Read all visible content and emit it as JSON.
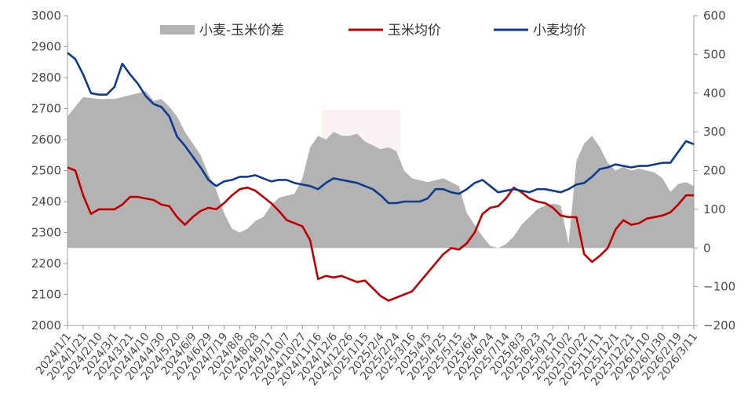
{
  "chart_data": {
    "type": "line",
    "legend_position": "top",
    "grid": false,
    "y_left": {
      "min": 2000,
      "max": 3000,
      "ticks": [
        2000,
        2100,
        2200,
        2300,
        2400,
        2500,
        2600,
        2700,
        2800,
        2900,
        3000
      ]
    },
    "y_right": {
      "min": -200,
      "max": 600,
      "ticks": [
        -200,
        -100,
        0,
        100,
        200,
        300,
        400,
        500,
        600
      ]
    },
    "x_tick_labels": [
      "2024/1/1",
      "2024/1/21",
      "2024/2/10",
      "2024/3/1",
      "2024/3/21",
      "2024/4/10",
      "2024/4/30",
      "2024/5/20",
      "2024/6/9",
      "2024/6/29",
      "2024/7/19",
      "2024/8/8",
      "2024/8/28",
      "2024/9/17",
      "2024/10/7",
      "2024/10/27",
      "2024/11/16",
      "2024/12/6",
      "2024/12/26",
      "2025/1/15",
      "2025/2/4",
      "2025/2/24",
      "2025/3/16",
      "2025/4/5",
      "2025/4/25",
      "2025/5/15",
      "2025/6/4",
      "2025/6/24",
      "2025/7/14",
      "2025/8/3",
      "2025/8/23",
      "2025/9/12",
      "2025/10/2",
      "2025/10/22",
      "2025/11/11",
      "2025/12/1",
      "2025/12/21",
      "2026/1/10",
      "2026/1/30",
      "2026/2/19",
      "2026/3/11"
    ],
    "series": [
      {
        "name": "小麦-玉米价差",
        "type": "area",
        "axis": "right",
        "color": "#b3b3b3",
        "points": [
          [
            0,
            340
          ],
          [
            2,
            390
          ],
          [
            4,
            385
          ],
          [
            6,
            385
          ],
          [
            8,
            395
          ],
          [
            10,
            405
          ],
          [
            11,
            380
          ],
          [
            12,
            385
          ],
          [
            13,
            365
          ],
          [
            14,
            340
          ],
          [
            15,
            300
          ],
          [
            16,
            270
          ],
          [
            17,
            240
          ],
          [
            18,
            190
          ],
          [
            19,
            150
          ],
          [
            20,
            90
          ],
          [
            21,
            50
          ],
          [
            22,
            40
          ],
          [
            23,
            50
          ],
          [
            24,
            70
          ],
          [
            25,
            80
          ],
          [
            26,
            110
          ],
          [
            27,
            130
          ],
          [
            28,
            135
          ],
          [
            29,
            140
          ],
          [
            30,
            180
          ],
          [
            31,
            260
          ],
          [
            32,
            290
          ],
          [
            33,
            280
          ],
          [
            34,
            300
          ],
          [
            35,
            290
          ],
          [
            36,
            290
          ],
          [
            37,
            295
          ],
          [
            38,
            275
          ],
          [
            39,
            265
          ],
          [
            40,
            255
          ],
          [
            41,
            260
          ],
          [
            42,
            250
          ],
          [
            43,
            200
          ],
          [
            44,
            180
          ],
          [
            45,
            175
          ],
          [
            46,
            170
          ],
          [
            47,
            175
          ],
          [
            48,
            180
          ],
          [
            49,
            170
          ],
          [
            50,
            160
          ],
          [
            51,
            90
          ],
          [
            52,
            60
          ],
          [
            53,
            30
          ],
          [
            54,
            5
          ],
          [
            55,
            0
          ],
          [
            56,
            10
          ],
          [
            57,
            30
          ],
          [
            58,
            60
          ],
          [
            59,
            80
          ],
          [
            60,
            100
          ],
          [
            61,
            110
          ],
          [
            62,
            115
          ],
          [
            63,
            110
          ],
          [
            64,
            10
          ],
          [
            65,
            225
          ],
          [
            66,
            270
          ],
          [
            67,
            290
          ],
          [
            68,
            260
          ],
          [
            69,
            220
          ],
          [
            70,
            200
          ],
          [
            71,
            210
          ],
          [
            72,
            200
          ],
          [
            73,
            205
          ],
          [
            74,
            200
          ],
          [
            75,
            195
          ],
          [
            76,
            180
          ],
          [
            77,
            145
          ],
          [
            78,
            165
          ],
          [
            79,
            170
          ],
          [
            80,
            160
          ]
        ]
      },
      {
        "name": "玉米均价",
        "type": "line",
        "axis": "left",
        "color": "#c00000",
        "points": [
          [
            0,
            2510
          ],
          [
            1,
            2500
          ],
          [
            2,
            2420
          ],
          [
            3,
            2360
          ],
          [
            4,
            2375
          ],
          [
            5,
            2375
          ],
          [
            6,
            2375
          ],
          [
            7,
            2390
          ],
          [
            8,
            2415
          ],
          [
            9,
            2415
          ],
          [
            10,
            2410
          ],
          [
            11,
            2405
          ],
          [
            12,
            2390
          ],
          [
            13,
            2385
          ],
          [
            14,
            2350
          ],
          [
            15,
            2325
          ],
          [
            16,
            2350
          ],
          [
            17,
            2370
          ],
          [
            18,
            2380
          ],
          [
            19,
            2375
          ],
          [
            20,
            2395
          ],
          [
            21,
            2420
          ],
          [
            22,
            2440
          ],
          [
            23,
            2445
          ],
          [
            24,
            2435
          ],
          [
            25,
            2415
          ],
          [
            26,
            2395
          ],
          [
            27,
            2370
          ],
          [
            28,
            2340
          ],
          [
            29,
            2330
          ],
          [
            30,
            2320
          ],
          [
            31,
            2275
          ],
          [
            32,
            2150
          ],
          [
            33,
            2160
          ],
          [
            34,
            2155
          ],
          [
            35,
            2160
          ],
          [
            36,
            2150
          ],
          [
            37,
            2140
          ],
          [
            38,
            2145
          ],
          [
            39,
            2120
          ],
          [
            40,
            2095
          ],
          [
            41,
            2080
          ],
          [
            42,
            2090
          ],
          [
            43,
            2100
          ],
          [
            44,
            2110
          ],
          [
            45,
            2140
          ],
          [
            46,
            2170
          ],
          [
            47,
            2200
          ],
          [
            48,
            2230
          ],
          [
            49,
            2250
          ],
          [
            50,
            2245
          ],
          [
            51,
            2265
          ],
          [
            52,
            2300
          ],
          [
            53,
            2360
          ],
          [
            54,
            2380
          ],
          [
            55,
            2385
          ],
          [
            56,
            2410
          ],
          [
            57,
            2445
          ],
          [
            58,
            2430
          ],
          [
            59,
            2410
          ],
          [
            60,
            2400
          ],
          [
            61,
            2395
          ],
          [
            62,
            2380
          ],
          [
            63,
            2355
          ],
          [
            64,
            2350
          ],
          [
            65,
            2350
          ],
          [
            66,
            2230
          ],
          [
            67,
            2205
          ],
          [
            68,
            2225
          ],
          [
            69,
            2250
          ],
          [
            70,
            2310
          ],
          [
            71,
            2340
          ],
          [
            72,
            2325
          ],
          [
            73,
            2330
          ],
          [
            74,
            2345
          ],
          [
            75,
            2350
          ],
          [
            76,
            2355
          ],
          [
            77,
            2365
          ],
          [
            78,
            2390
          ],
          [
            79,
            2420
          ],
          [
            80,
            2420
          ]
        ]
      },
      {
        "name": "小麦均价",
        "type": "line",
        "axis": "left",
        "color": "#0d3b8e",
        "points": [
          [
            0,
            2880
          ],
          [
            1,
            2860
          ],
          [
            2,
            2810
          ],
          [
            3,
            2750
          ],
          [
            4,
            2745
          ],
          [
            5,
            2745
          ],
          [
            6,
            2770
          ],
          [
            7,
            2845
          ],
          [
            8,
            2810
          ],
          [
            9,
            2780
          ],
          [
            10,
            2740
          ],
          [
            11,
            2715
          ],
          [
            12,
            2705
          ],
          [
            13,
            2675
          ],
          [
            14,
            2610
          ],
          [
            15,
            2580
          ],
          [
            16,
            2545
          ],
          [
            17,
            2510
          ],
          [
            18,
            2470
          ],
          [
            19,
            2450
          ],
          [
            20,
            2465
          ],
          [
            21,
            2470
          ],
          [
            22,
            2480
          ],
          [
            23,
            2480
          ],
          [
            24,
            2485
          ],
          [
            25,
            2475
          ],
          [
            26,
            2465
          ],
          [
            27,
            2470
          ],
          [
            28,
            2470
          ],
          [
            29,
            2460
          ],
          [
            30,
            2455
          ],
          [
            31,
            2450
          ],
          [
            32,
            2440
          ],
          [
            33,
            2460
          ],
          [
            34,
            2475
          ],
          [
            35,
            2470
          ],
          [
            36,
            2465
          ],
          [
            37,
            2460
          ],
          [
            38,
            2450
          ],
          [
            39,
            2440
          ],
          [
            40,
            2420
          ],
          [
            41,
            2395
          ],
          [
            42,
            2395
          ],
          [
            43,
            2400
          ],
          [
            44,
            2400
          ],
          [
            45,
            2400
          ],
          [
            46,
            2410
          ],
          [
            47,
            2440
          ],
          [
            48,
            2440
          ],
          [
            49,
            2430
          ],
          [
            50,
            2425
          ],
          [
            51,
            2440
          ],
          [
            52,
            2460
          ],
          [
            53,
            2470
          ],
          [
            54,
            2450
          ],
          [
            55,
            2430
          ],
          [
            56,
            2435
          ],
          [
            57,
            2440
          ],
          [
            58,
            2435
          ],
          [
            59,
            2430
          ],
          [
            60,
            2440
          ],
          [
            61,
            2440
          ],
          [
            62,
            2435
          ],
          [
            63,
            2430
          ],
          [
            64,
            2440
          ],
          [
            65,
            2455
          ],
          [
            66,
            2460
          ],
          [
            67,
            2480
          ],
          [
            68,
            2505
          ],
          [
            69,
            2510
          ],
          [
            70,
            2520
          ],
          [
            71,
            2515
          ],
          [
            72,
            2510
          ],
          [
            73,
            2515
          ],
          [
            74,
            2515
          ],
          [
            75,
            2520
          ],
          [
            76,
            2525
          ],
          [
            77,
            2525
          ],
          [
            78,
            2560
          ],
          [
            79,
            2595
          ],
          [
            80,
            2585
          ]
        ]
      }
    ]
  }
}
